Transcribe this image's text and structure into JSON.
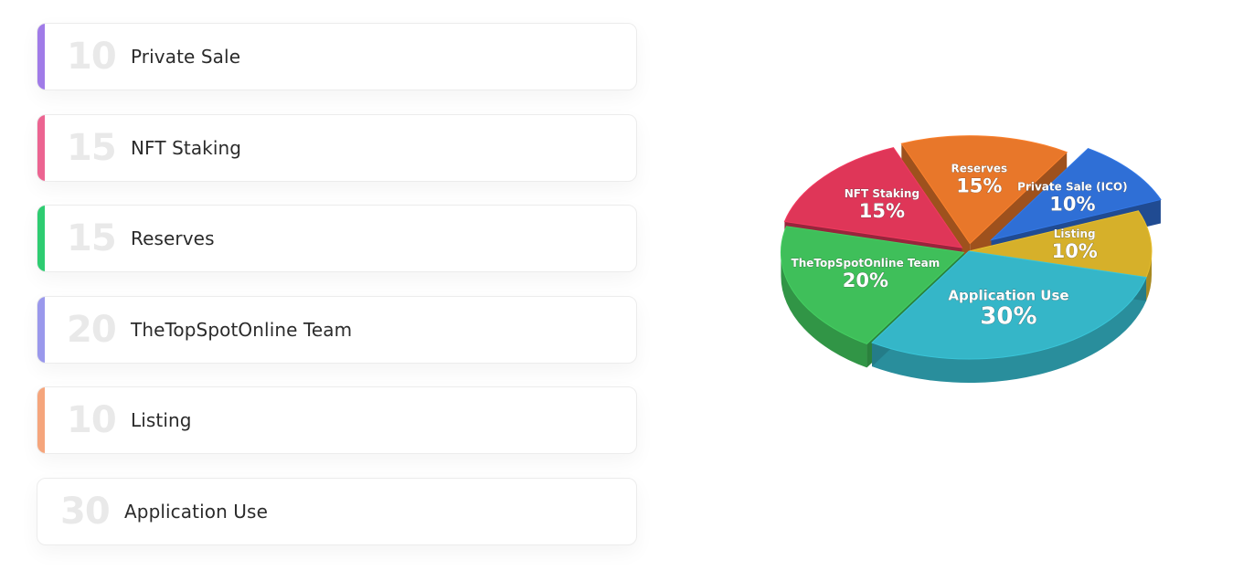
{
  "allocations": [
    {
      "value": "10",
      "label": "Private Sale",
      "accent": "#a07be8"
    },
    {
      "value": "15",
      "label": "NFT Staking",
      "accent": "#ec6491"
    },
    {
      "value": "15",
      "label": "Reserves",
      "accent": "#2ecc71"
    },
    {
      "value": "20",
      "label": "TheTopSpotOnline Team",
      "accent": "#9a98ec"
    },
    {
      "value": "10",
      "label": "Listing",
      "accent": "#f5a57c"
    },
    {
      "value": "30",
      "label": "Application Use",
      "accent": ""
    }
  ],
  "chart_data": {
    "type": "pie",
    "slices": [
      {
        "name": "Private Sale (ICO)",
        "value": 10,
        "pct_label": "10%",
        "color": "#2f6fd6"
      },
      {
        "name": "Listing",
        "value": 10,
        "pct_label": "10%",
        "color": "#d6b02a"
      },
      {
        "name": "Application Use",
        "value": 30,
        "pct_label": "30%",
        "color": "#35b6c8"
      },
      {
        "name": "TheTopSpotOnline Team",
        "value": 20,
        "pct_label": "20%",
        "color": "#3fbf5a"
      },
      {
        "name": "NFT Staking",
        "value": 15,
        "pct_label": "15%",
        "color": "#df3658"
      },
      {
        "name": "Reserves",
        "value": 15,
        "pct_label": "15%",
        "color": "#e8772a"
      }
    ]
  }
}
